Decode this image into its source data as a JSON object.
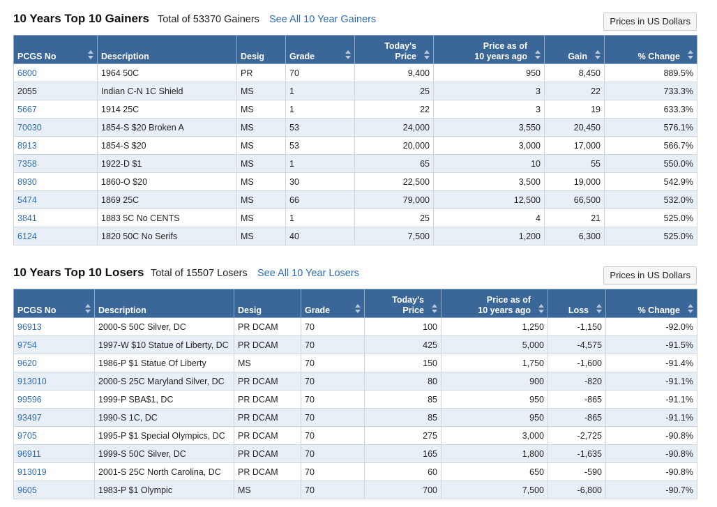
{
  "gainers": {
    "title": "10 Years Top 10 Gainers",
    "total": "Total of 53370 Gainers",
    "link": "See All 10 Year Gainers",
    "price_button": "Prices in US Dollars",
    "columns": {
      "pcgs": "PCGS No",
      "description": "Description",
      "desig": "Desig",
      "grade": "Grade",
      "today_l1": "Today's",
      "today_l2": "Price",
      "prev_l1": "Price as of",
      "prev_l2": "10 years ago",
      "change": "Gain",
      "pct": "% Change"
    },
    "rows": [
      {
        "pcgs": "6800",
        "link": true,
        "description": "1964 50C",
        "desig": "PR",
        "grade": "70",
        "today": "9,400",
        "prev": "950",
        "change": "8,450",
        "pct": "889.5%"
      },
      {
        "pcgs": "2055",
        "link": false,
        "description": "Indian C-N 1C Shield",
        "desig": "MS",
        "grade": "1",
        "today": "25",
        "prev": "3",
        "change": "22",
        "pct": "733.3%"
      },
      {
        "pcgs": "5667",
        "link": true,
        "description": "1914 25C",
        "desig": "MS",
        "grade": "1",
        "today": "22",
        "prev": "3",
        "change": "19",
        "pct": "633.3%"
      },
      {
        "pcgs": "70030",
        "link": true,
        "description": "1854-S $20 Broken A",
        "desig": "MS",
        "grade": "53",
        "today": "24,000",
        "prev": "3,550",
        "change": "20,450",
        "pct": "576.1%"
      },
      {
        "pcgs": "8913",
        "link": true,
        "description": "1854-S $20",
        "desig": "MS",
        "grade": "53",
        "today": "20,000",
        "prev": "3,000",
        "change": "17,000",
        "pct": "566.7%"
      },
      {
        "pcgs": "7358",
        "link": true,
        "description": "1922-D $1",
        "desig": "MS",
        "grade": "1",
        "today": "65",
        "prev": "10",
        "change": "55",
        "pct": "550.0%"
      },
      {
        "pcgs": "8930",
        "link": true,
        "description": "1860-O $20",
        "desig": "MS",
        "grade": "30",
        "today": "22,500",
        "prev": "3,500",
        "change": "19,000",
        "pct": "542.9%"
      },
      {
        "pcgs": "5474",
        "link": true,
        "description": "1869 25C",
        "desig": "MS",
        "grade": "66",
        "today": "79,000",
        "prev": "12,500",
        "change": "66,500",
        "pct": "532.0%"
      },
      {
        "pcgs": "3841",
        "link": true,
        "description": "1883 5C No CENTS",
        "desig": "MS",
        "grade": "1",
        "today": "25",
        "prev": "4",
        "change": "21",
        "pct": "525.0%"
      },
      {
        "pcgs": "6124",
        "link": true,
        "description": "1820 50C No Serifs",
        "desig": "MS",
        "grade": "40",
        "today": "7,500",
        "prev": "1,200",
        "change": "6,300",
        "pct": "525.0%"
      }
    ]
  },
  "losers": {
    "title": "10 Years Top 10 Losers",
    "total": "Total of 15507 Losers",
    "link": "See All 10 Year Losers",
    "price_button": "Prices in US Dollars",
    "columns": {
      "pcgs": "PCGS No",
      "description": "Description",
      "desig": "Desig",
      "grade": "Grade",
      "today_l1": "Today's",
      "today_l2": "Price",
      "prev_l1": "Price as of",
      "prev_l2": "10 years ago",
      "change": "Loss",
      "pct": "% Change"
    },
    "rows": [
      {
        "pcgs": "96913",
        "link": true,
        "description": "2000-S 50C Silver, DC",
        "desig": "PR DCAM",
        "grade": "70",
        "today": "100",
        "prev": "1,250",
        "change": "-1,150",
        "pct": "-92.0%"
      },
      {
        "pcgs": "9754",
        "link": true,
        "description": "1997-W $10 Statue of Liberty, DC",
        "desig": "PR DCAM",
        "grade": "70",
        "today": "425",
        "prev": "5,000",
        "change": "-4,575",
        "pct": "-91.5%"
      },
      {
        "pcgs": "9620",
        "link": true,
        "description": "1986-P $1 Statue Of Liberty",
        "desig": "MS",
        "grade": "70",
        "today": "150",
        "prev": "1,750",
        "change": "-1,600",
        "pct": "-91.4%"
      },
      {
        "pcgs": "913010",
        "link": true,
        "description": "2000-S 25C Maryland Silver, DC",
        "desig": "PR DCAM",
        "grade": "70",
        "today": "80",
        "prev": "900",
        "change": "-820",
        "pct": "-91.1%"
      },
      {
        "pcgs": "99596",
        "link": true,
        "description": "1999-P SBA$1, DC",
        "desig": "PR DCAM",
        "grade": "70",
        "today": "85",
        "prev": "950",
        "change": "-865",
        "pct": "-91.1%"
      },
      {
        "pcgs": "93497",
        "link": true,
        "description": "1990-S 1C, DC",
        "desig": "PR DCAM",
        "grade": "70",
        "today": "85",
        "prev": "950",
        "change": "-865",
        "pct": "-91.1%"
      },
      {
        "pcgs": "9705",
        "link": true,
        "description": "1995-P $1 Special Olympics, DC",
        "desig": "PR DCAM",
        "grade": "70",
        "today": "275",
        "prev": "3,000",
        "change": "-2,725",
        "pct": "-90.8%"
      },
      {
        "pcgs": "96911",
        "link": true,
        "description": "1999-S 50C Silver, DC",
        "desig": "PR DCAM",
        "grade": "70",
        "today": "165",
        "prev": "1,800",
        "change": "-1,635",
        "pct": "-90.8%"
      },
      {
        "pcgs": "913019",
        "link": true,
        "description": "2001-S 25C North Carolina, DC",
        "desig": "PR DCAM",
        "grade": "70",
        "today": "60",
        "prev": "650",
        "change": "-590",
        "pct": "-90.8%"
      },
      {
        "pcgs": "9605",
        "link": true,
        "description": "1983-P $1 Olympic",
        "desig": "MS",
        "grade": "70",
        "today": "700",
        "prev": "7,500",
        "change": "-6,800",
        "pct": "-90.7%"
      }
    ]
  },
  "colors": {
    "header_bg": "#3a6698",
    "link": "#2e6db4",
    "row_alt": "#e9eff6"
  }
}
